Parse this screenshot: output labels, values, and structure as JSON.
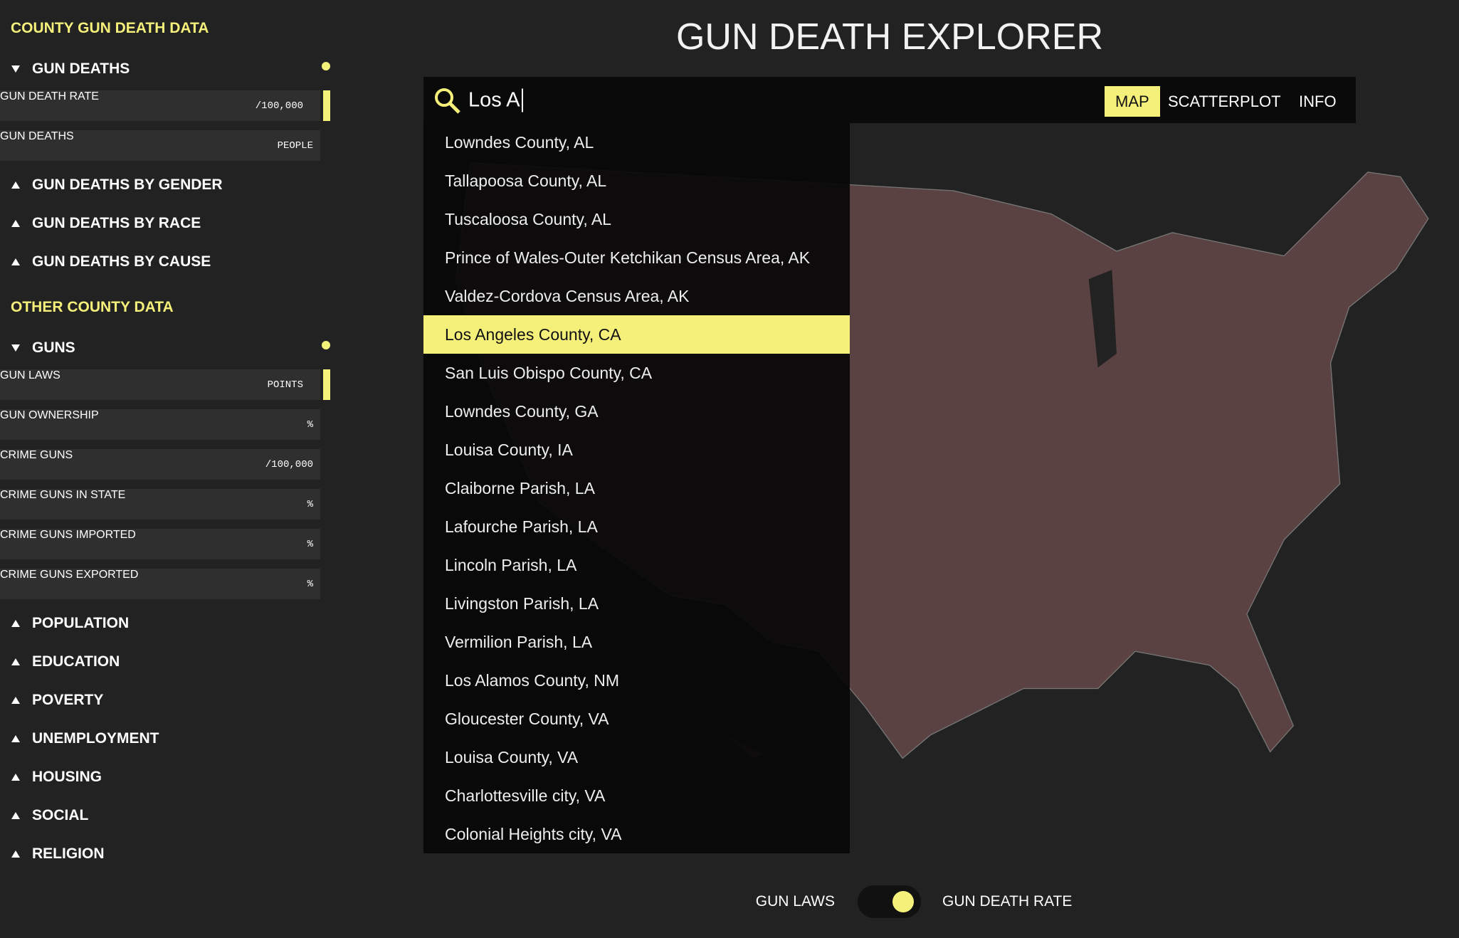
{
  "header": {
    "title": "GUN DEATH EXPLORER"
  },
  "sidebar": {
    "sections": [
      {
        "title": "COUNTY GUN DEATH DATA",
        "groups": [
          {
            "label": "GUN DEATHS",
            "rows": [
              {
                "label": "GUN DEATH RATE",
                "unit": "/100,000",
                "selected": true
              },
              {
                "label": "GUN DEATHS",
                "unit": "PEOPLE",
                "selected": false
              }
            ]
          },
          {
            "label": "GUN DEATHS BY GENDER"
          },
          {
            "label": "GUN DEATHS BY RACE"
          },
          {
            "label": "GUN DEATHS BY CAUSE"
          }
        ]
      },
      {
        "title": "OTHER COUNTY DATA",
        "groups": [
          {
            "label": "GUNS",
            "rows": [
              {
                "label": "GUN LAWS",
                "unit": "POINTS",
                "selected": true
              },
              {
                "label": "GUN OWNERSHIP",
                "unit": "%",
                "selected": false
              },
              {
                "label": "CRIME GUNS",
                "unit": "/100,000",
                "selected": false
              },
              {
                "label": "CRIME GUNS IN STATE",
                "unit": "%",
                "selected": false
              },
              {
                "label": "CRIME GUNS IMPORTED",
                "unit": "%",
                "selected": false
              },
              {
                "label": "CRIME GUNS EXPORTED",
                "unit": "%",
                "selected": false
              }
            ]
          },
          {
            "label": "POPULATION"
          },
          {
            "label": "EDUCATION"
          },
          {
            "label": "POVERTY"
          },
          {
            "label": "UNEMPLOYMENT"
          },
          {
            "label": "HOUSING"
          },
          {
            "label": "SOCIAL"
          },
          {
            "label": "RELIGION"
          }
        ]
      }
    ]
  },
  "search": {
    "query": "Los A",
    "tabs": [
      "MAP",
      "SCATTERPLOT",
      "INFO"
    ],
    "active_tab": 0,
    "results": [
      "Lowndes County, AL",
      "Tallapoosa County, AL",
      "Tuscaloosa County, AL",
      "Prince of Wales-Outer Ketchikan Census Area, AK",
      "Valdez-Cordova Census Area, AK",
      "Los Angeles County, CA",
      "San Luis Obispo County, CA",
      "Lowndes County, GA",
      "Louisa County, IA",
      "Claiborne Parish, LA",
      "Lafourche Parish, LA",
      "Lincoln Parish, LA",
      "Livingston Parish, LA",
      "Vermilion Parish, LA",
      "Los Alamos County, NM",
      "Gloucester County, VA",
      "Louisa County, VA",
      "Charlottesville city, VA",
      "Colonial Heights city, VA"
    ],
    "highlighted": 5
  },
  "toggle": {
    "left": "GUN LAWS",
    "right": "GUN DEATH RATE"
  }
}
